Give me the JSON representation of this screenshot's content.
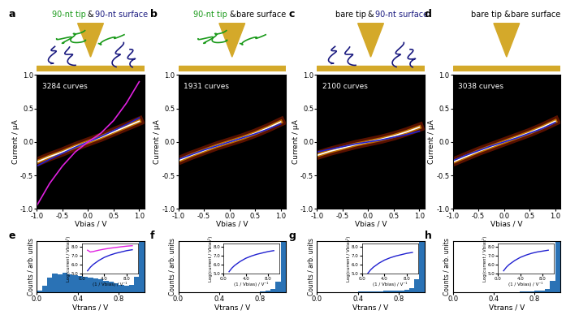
{
  "chart_data": [
    {
      "type": "line",
      "panel": "a",
      "title": "90-nt tip & 90-nt surface",
      "annotations": [
        "3284 curves"
      ],
      "x_label": "Vbias / V",
      "y_label": "Current / μA",
      "x": [
        -1,
        -0.75,
        -0.5,
        -0.25,
        0,
        0.25,
        0.5,
        0.75,
        1
      ],
      "series": [
        {
          "color": "#ffffff",
          "values": [
            -0.3,
            -0.22,
            -0.15,
            -0.07,
            0,
            0.07,
            0.15,
            0.23,
            0.31
          ]
        },
        {
          "color": "#2020d0",
          "values": [
            -0.36,
            -0.26,
            -0.17,
            -0.08,
            0,
            0.08,
            0.17,
            0.26,
            0.36
          ]
        },
        {
          "color": "#e020e0",
          "values": [
            -0.95,
            -0.62,
            -0.36,
            -0.15,
            0,
            0.13,
            0.32,
            0.58,
            0.9
          ]
        }
      ],
      "xlim": [
        -1,
        1.1
      ],
      "xticks": [
        {
          "value": -1,
          "label": "-1.0"
        },
        {
          "value": -0.5,
          "label": "-0.5"
        },
        {
          "value": 0,
          "label": "0.0"
        },
        {
          "value": 0.5,
          "label": "0.5"
        },
        {
          "value": 1,
          "label": "1.0"
        }
      ],
      "ylim": [
        -1,
        1
      ],
      "yticks": [
        {
          "value": -1,
          "label": "-1.0"
        },
        {
          "value": -0.5,
          "label": "-0.5"
        },
        {
          "value": 0,
          "label": "0.0"
        },
        {
          "value": 0.5,
          "label": "0.5"
        },
        {
          "value": 1,
          "label": "1.0"
        }
      ]
    },
    {
      "type": "line",
      "panel": "b",
      "title": "90-nt tip & bare surface",
      "annotations": [
        "1931 curves"
      ],
      "x_label": "Vbias / V",
      "y_label": "Current / μA",
      "x": [
        -1,
        -0.75,
        -0.5,
        -0.25,
        0,
        0.25,
        0.5,
        0.75,
        1
      ],
      "series": [
        {
          "color": "#ffffff",
          "values": [
            -0.28,
            -0.2,
            -0.13,
            -0.06,
            0,
            0.06,
            0.13,
            0.21,
            0.3
          ]
        },
        {
          "color": "#2020d0",
          "values": [
            -0.26,
            -0.19,
            -0.12,
            -0.06,
            0,
            0.06,
            0.12,
            0.19,
            0.27
          ]
        }
      ],
      "xlim": [
        -1,
        1.1
      ],
      "xticks": [
        {
          "value": -1,
          "label": "-1.0"
        },
        {
          "value": -0.5,
          "label": "-0.5"
        },
        {
          "value": 0,
          "label": "0.0"
        },
        {
          "value": 0.5,
          "label": "0.5"
        },
        {
          "value": 1,
          "label": "1.0"
        }
      ],
      "ylim": [
        -1,
        1
      ],
      "yticks": [
        {
          "value": -1,
          "label": "-1.0"
        },
        {
          "value": -0.5,
          "label": "-0.5"
        },
        {
          "value": 0,
          "label": "0.0"
        },
        {
          "value": 0.5,
          "label": "0.5"
        },
        {
          "value": 1,
          "label": "1.0"
        }
      ]
    },
    {
      "type": "line",
      "panel": "c",
      "title": "bare tip & 90-nt surface",
      "annotations": [
        "2100 curves"
      ],
      "x_label": "Vbias / V",
      "y_label": "Current / μA",
      "x": [
        -1,
        -0.75,
        -0.5,
        -0.25,
        0,
        0.25,
        0.5,
        0.75,
        1
      ],
      "series": [
        {
          "color": "#ffffff",
          "values": [
            -0.2,
            -0.14,
            -0.09,
            -0.04,
            0,
            0.04,
            0.09,
            0.15,
            0.22
          ]
        },
        {
          "color": "#2020d0",
          "values": [
            -0.15,
            -0.11,
            -0.07,
            -0.03,
            0,
            0.03,
            0.07,
            0.11,
            0.16
          ]
        }
      ],
      "xlim": [
        -1,
        1.1
      ],
      "xticks": [
        {
          "value": -1,
          "label": "-1.0"
        },
        {
          "value": -0.5,
          "label": "-0.5"
        },
        {
          "value": 0,
          "label": "0.0"
        },
        {
          "value": 0.5,
          "label": "0.5"
        },
        {
          "value": 1,
          "label": "1.0"
        }
      ],
      "ylim": [
        -1,
        1
      ],
      "yticks": [
        {
          "value": -1,
          "label": "-1.0"
        },
        {
          "value": -0.5,
          "label": "-0.5"
        },
        {
          "value": 0,
          "label": "0.0"
        },
        {
          "value": 0.5,
          "label": "0.5"
        },
        {
          "value": 1,
          "label": "1.0"
        }
      ]
    },
    {
      "type": "line",
      "panel": "d",
      "title": "bare tip & bare surface",
      "annotations": [
        "3038 curves"
      ],
      "x_label": "Vbias / V",
      "y_label": "Current / μA",
      "x": [
        -1,
        -0.75,
        -0.5,
        -0.25,
        0,
        0.25,
        0.5,
        0.75,
        1
      ],
      "series": [
        {
          "color": "#ffffff",
          "values": [
            -0.3,
            -0.22,
            -0.14,
            -0.07,
            0,
            0.07,
            0.14,
            0.22,
            0.31
          ]
        },
        {
          "color": "#2020d0",
          "values": [
            -0.28,
            -0.2,
            -0.13,
            -0.06,
            0,
            0.06,
            0.13,
            0.2,
            0.29
          ]
        }
      ],
      "xlim": [
        -1,
        1.1
      ],
      "xticks": [
        {
          "value": -1,
          "label": "-1.0"
        },
        {
          "value": -0.5,
          "label": "-0.5"
        },
        {
          "value": 0,
          "label": "0.0"
        },
        {
          "value": 0.5,
          "label": "0.5"
        },
        {
          "value": 1,
          "label": "1.0"
        }
      ],
      "ylim": [
        -1,
        1
      ],
      "yticks": [
        {
          "value": -1,
          "label": "-1.0"
        },
        {
          "value": -0.5,
          "label": "-0.5"
        },
        {
          "value": 0,
          "label": "0.0"
        },
        {
          "value": 0.5,
          "label": "0.5"
        },
        {
          "value": 1,
          "label": "1.0"
        }
      ]
    },
    {
      "type": "histogram",
      "panel": "e",
      "x_label": "Vtrans / V",
      "y_label": "Counts / arb. units",
      "color": "#2a72b5",
      "bins": [
        0,
        0.05,
        0.1,
        0.15,
        0.2,
        0.25,
        0.3,
        0.35,
        0.4,
        0.45,
        0.5,
        0.55,
        0.6,
        0.65,
        0.7,
        0.75,
        0.8,
        0.85,
        0.9,
        0.95,
        1.0,
        1.05
      ],
      "counts": [
        0.03,
        0.12,
        0.28,
        0.36,
        0.34,
        0.37,
        0.35,
        0.33,
        0.31,
        0.3,
        0.28,
        0.27,
        0.25,
        0.22,
        0.2,
        0.17,
        0.14,
        0.12,
        0.14,
        0.3,
        1.0
      ],
      "xlim": [
        0,
        1.05
      ],
      "xticks": [
        {
          "value": 0,
          "label": "0.0"
        },
        {
          "value": 0.4,
          "label": "0.4"
        },
        {
          "value": 0.8,
          "label": "0.8"
        }
      ],
      "ylim": [
        0,
        1
      ],
      "tick_labels": "x",
      "inset": {
        "type": "line",
        "x_label": "(1 / Vbias) / V⁻¹",
        "y_label": "Log(current / Vbias²)",
        "x": [
          1,
          1.5,
          2,
          3,
          4,
          5,
          6,
          7,
          8,
          9
        ],
        "series": [
          {
            "color": "#2020d0",
            "values": [
              5.3,
              5.7,
              6.0,
              6.45,
              6.8,
              7.05,
              7.25,
              7.4,
              7.55,
              7.65
            ]
          },
          {
            "color": "#e020e0",
            "values": [
              7.6,
              7.4,
              7.45,
              7.6,
              7.72,
              7.82,
              7.9,
              7.98,
              8.05,
              8.1
            ]
          }
        ],
        "xlim": [
          0,
          10
        ],
        "xticks": [
          {
            "value": 0,
            "label": "0.0"
          },
          {
            "value": 4,
            "label": "4.0"
          },
          {
            "value": 8,
            "label": "8.0"
          }
        ],
        "ylim": [
          5,
          8.3
        ],
        "yticks": [
          {
            "value": 5,
            "label": "5.0"
          },
          {
            "value": 6,
            "label": "6.0"
          },
          {
            "value": 7,
            "label": "7.0"
          },
          {
            "value": 8,
            "label": "8.0"
          }
        ]
      }
    },
    {
      "type": "histogram",
      "panel": "f",
      "x_label": "Vtrans / V",
      "y_label": "Counts / arb. units",
      "color": "#2a72b5",
      "bins": [
        0,
        0.05,
        0.1,
        0.15,
        0.2,
        0.25,
        0.3,
        0.35,
        0.4,
        0.45,
        0.5,
        0.55,
        0.6,
        0.65,
        0.7,
        0.75,
        0.8,
        0.85,
        0.9,
        0.95,
        1.0,
        1.05
      ],
      "counts": [
        0,
        0,
        0,
        0,
        0,
        0,
        0,
        0,
        0,
        0,
        0,
        0,
        0,
        0,
        0,
        0,
        0.01,
        0.02,
        0.05,
        0.2,
        1.0
      ],
      "xlim": [
        0,
        1.05
      ],
      "xticks": [
        {
          "value": 0,
          "label": "0.0"
        },
        {
          "value": 0.4,
          "label": "0.4"
        },
        {
          "value": 0.8,
          "label": "0.8"
        }
      ],
      "ylim": [
        0,
        1
      ],
      "tick_labels": "x",
      "inset": {
        "type": "line",
        "x_label": "(1 / Vbias) / V⁻¹",
        "y_label": "Log(current / Vbias²)",
        "x": [
          1,
          1.5,
          2,
          3,
          4,
          5,
          6,
          7,
          8,
          9
        ],
        "series": [
          {
            "color": "#2020d0",
            "values": [
              5.2,
              5.6,
              5.9,
              6.35,
              6.7,
              6.95,
              7.15,
              7.3,
              7.45,
              7.55
            ]
          }
        ],
        "xlim": [
          0,
          10
        ],
        "xticks": [
          {
            "value": 0,
            "label": "0.0"
          },
          {
            "value": 4,
            "label": "4.0"
          },
          {
            "value": 8,
            "label": "8.0"
          }
        ],
        "ylim": [
          5,
          8.3
        ],
        "yticks": [
          {
            "value": 5,
            "label": "5.0"
          },
          {
            "value": 6,
            "label": "6.0"
          },
          {
            "value": 7,
            "label": "7.0"
          },
          {
            "value": 8,
            "label": "8.0"
          }
        ]
      }
    },
    {
      "type": "histogram",
      "panel": "g",
      "x_label": "Vtrans / V",
      "y_label": "Counts / arb. units",
      "color": "#2a72b5",
      "bins": [
        0,
        0.05,
        0.1,
        0.15,
        0.2,
        0.25,
        0.3,
        0.35,
        0.4,
        0.45,
        0.5,
        0.55,
        0.6,
        0.65,
        0.7,
        0.75,
        0.8,
        0.85,
        0.9,
        0.95,
        1.0,
        1.05
      ],
      "counts": [
        0,
        0,
        0,
        0,
        0,
        0,
        0,
        0,
        0.01,
        0.01,
        0.01,
        0.01,
        0.01,
        0.02,
        0.02,
        0.02,
        0.03,
        0.04,
        0.08,
        0.25,
        1.0
      ],
      "xlim": [
        0,
        1.05
      ],
      "xticks": [
        {
          "value": 0,
          "label": "0.0"
        },
        {
          "value": 0.4,
          "label": "0.4"
        },
        {
          "value": 0.8,
          "label": "0.8"
        }
      ],
      "ylim": [
        0,
        1
      ],
      "tick_labels": "x",
      "inset": {
        "type": "line",
        "x_label": "(1 / Vbias) / V⁻¹",
        "y_label": "Log(current / Vbias²)",
        "x": [
          1,
          1.5,
          2,
          3,
          4,
          5,
          6,
          7,
          8,
          9
        ],
        "series": [
          {
            "color": "#2020d0",
            "values": [
              5.0,
              5.4,
              5.7,
              6.15,
              6.5,
              6.75,
              6.95,
              7.1,
              7.25,
              7.35
            ]
          }
        ],
        "xlim": [
          0,
          10
        ],
        "xticks": [
          {
            "value": 0,
            "label": "0.0"
          },
          {
            "value": 4,
            "label": "4.0"
          },
          {
            "value": 8,
            "label": "8.0"
          }
        ],
        "ylim": [
          5,
          8.3
        ],
        "yticks": [
          {
            "value": 5,
            "label": "5.0"
          },
          {
            "value": 6,
            "label": "6.0"
          },
          {
            "value": 7,
            "label": "7.0"
          },
          {
            "value": 8,
            "label": "8.0"
          }
        ]
      }
    },
    {
      "type": "histogram",
      "panel": "h",
      "x_label": "Vtrans / V",
      "y_label": "Counts / arb. units",
      "color": "#2a72b5",
      "bins": [
        0,
        0.05,
        0.1,
        0.15,
        0.2,
        0.25,
        0.3,
        0.35,
        0.4,
        0.45,
        0.5,
        0.55,
        0.6,
        0.65,
        0.7,
        0.75,
        0.8,
        0.85,
        0.9,
        0.95,
        1.0,
        1.05
      ],
      "counts": [
        0,
        0,
        0,
        0,
        0,
        0,
        0,
        0,
        0,
        0,
        0,
        0,
        0,
        0.01,
        0.01,
        0.01,
        0.02,
        0.03,
        0.06,
        0.22,
        1.0
      ],
      "xlim": [
        0,
        1.05
      ],
      "xticks": [
        {
          "value": 0,
          "label": "0.0"
        },
        {
          "value": 0.4,
          "label": "0.4"
        },
        {
          "value": 0.8,
          "label": "0.8"
        }
      ],
      "ylim": [
        0,
        1
      ],
      "tick_labels": "x",
      "inset": {
        "type": "line",
        "x_label": "(1 / Vbias) / V⁻¹",
        "y_label": "Log(current / Vbias²)",
        "x": [
          1,
          1.5,
          2,
          3,
          4,
          5,
          6,
          7,
          8,
          9
        ],
        "series": [
          {
            "color": "#2020d0",
            "values": [
              5.3,
              5.7,
              6.0,
              6.45,
              6.8,
              7.05,
              7.25,
              7.4,
              7.5,
              7.6
            ]
          }
        ],
        "xlim": [
          0,
          10
        ],
        "xticks": [
          {
            "value": 0,
            "label": "0.0"
          },
          {
            "value": 4,
            "label": "4.0"
          },
          {
            "value": 8,
            "label": "8.0"
          }
        ],
        "ylim": [
          5,
          8.3
        ],
        "yticks": [
          {
            "value": 5,
            "label": "5.0"
          },
          {
            "value": 6,
            "label": "6.0"
          },
          {
            "value": 7,
            "label": "7.0"
          },
          {
            "value": 8,
            "label": "8.0"
          }
        ]
      }
    }
  ]
}
